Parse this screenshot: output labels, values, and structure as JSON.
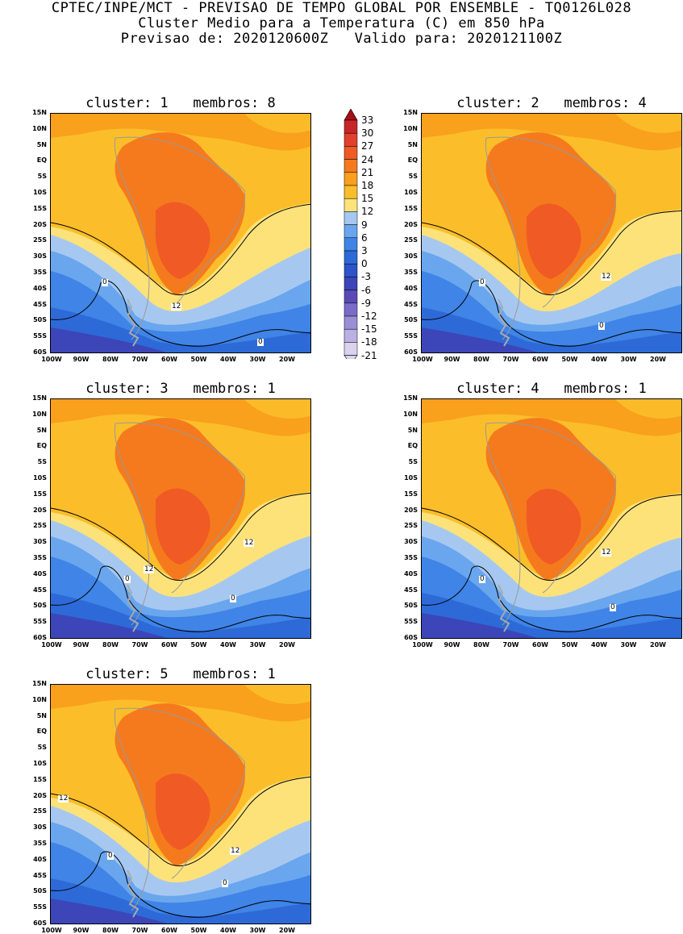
{
  "header": {
    "line1": "CPTEC/INPE/MCT - PREVISAO DE TEMPO GLOBAL POR ENSEMBLE - TQ0126L028",
    "line2": "Cluster Medio para a Temperatura (C) em 850 hPa",
    "line3": "Previsao de: 2020120600Z   Valido para: 2020121100Z"
  },
  "lat_labels": [
    "15N",
    "10N",
    "5N",
    "EQ",
    "5S",
    "10S",
    "15S",
    "20S",
    "25S",
    "30S",
    "35S",
    "40S",
    "45S",
    "50S",
    "55S",
    "60S"
  ],
  "lon_labels": [
    "100W",
    "90W",
    "80W",
    "70W",
    "60W",
    "50W",
    "40W",
    "30W",
    "20W"
  ],
  "legend": {
    "values": [
      "33",
      "30",
      "27",
      "24",
      "21",
      "18",
      "15",
      "12",
      "9",
      "6",
      "3",
      "0",
      "-3",
      "-6",
      "-9",
      "-12",
      "-15",
      "-18",
      "-21"
    ],
    "colors": [
      "#a50f15",
      "#c9242a",
      "#e0412e",
      "#f05a24",
      "#f57a1e",
      "#f9a01c",
      "#fbbe2a",
      "#fde27a",
      "#a6c8f0",
      "#6aa6ee",
      "#3f84e6",
      "#2d6ad8",
      "#2b55c8",
      "#3c46b8",
      "#5a4ab6",
      "#7a6cc6",
      "#9a8ed4",
      "#bbb0e2",
      "#d9d3ef"
    ]
  },
  "panels": [
    {
      "title": "cluster: 1   membros: 8",
      "contour_labels": [
        "0",
        "12",
        "0"
      ]
    },
    {
      "title": "cluster: 2   membros: 4",
      "contour_labels": [
        "0",
        "12",
        "0"
      ]
    },
    {
      "title": "cluster: 3   membros: 1",
      "contour_labels": [
        "0",
        "12",
        "12",
        "0"
      ]
    },
    {
      "title": "cluster: 4   membros: 1",
      "contour_labels": [
        "0",
        "12",
        "0"
      ]
    },
    {
      "title": "cluster: 5   membros: 1",
      "contour_labels": [
        "12",
        "0",
        "12",
        "0"
      ]
    }
  ]
}
